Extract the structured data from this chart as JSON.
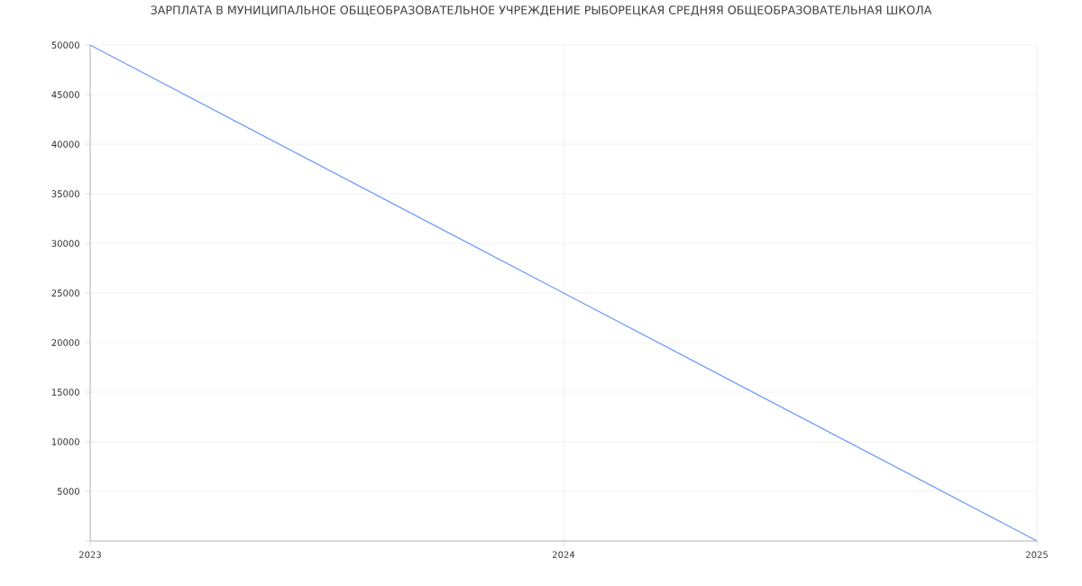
{
  "chart_data": {
    "type": "line",
    "title": "ЗАРПЛАТА В МУНИЦИПАЛЬНОЕ ОБЩЕОБРАЗОВАТЕЛЬНОЕ УЧРЕЖДЕНИЕ РЫБОРЕЦКАЯ СРЕДНЯЯ ОБЩЕОБРАЗОВАТЕЛЬНАЯ ШКОЛА",
    "x": [
      2023,
      2024,
      2025
    ],
    "series": [
      {
        "color": "#6f9cfa",
        "values": [
          50000,
          25000,
          0
        ]
      }
    ],
    "xlim": [
      2023,
      2025
    ],
    "xticks": [
      2023,
      2024,
      2025
    ],
    "ylim": [
      0,
      50000
    ],
    "yticks": [
      {
        "value": 0,
        "label": null
      },
      5000,
      10000,
      15000,
      20000,
      25000,
      30000,
      35000,
      40000,
      45000,
      50000
    ],
    "grid": true,
    "legend": false,
    "marker": "none",
    "line_style": "solid"
  }
}
